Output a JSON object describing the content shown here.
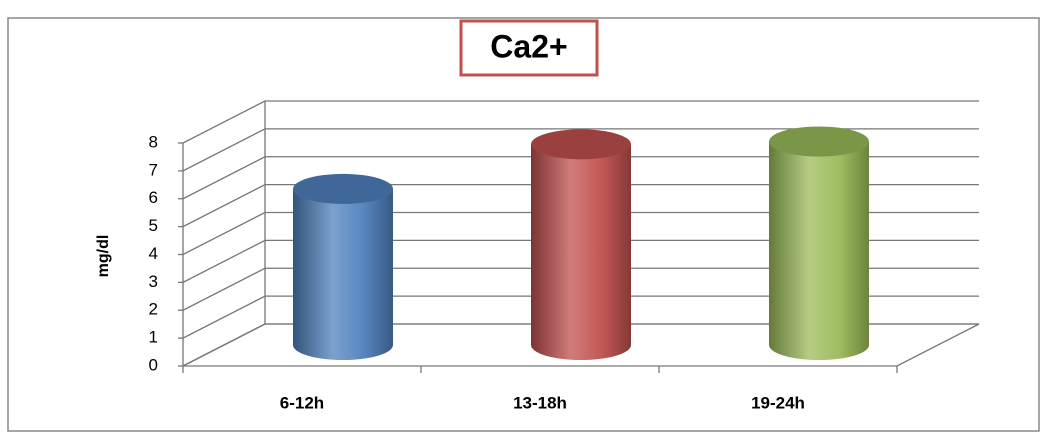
{
  "chart_data": {
    "type": "bar3d",
    "title": "Ca2+",
    "y_label": "mg/dl",
    "categories": [
      "6-12h",
      "13-18h",
      "19-24h"
    ],
    "values": [
      5.6,
      7.2,
      7.3
    ],
    "colors": [
      "#4f81bd",
      "#c0504d",
      "#9bbb59"
    ],
    "ylim": [
      0,
      8
    ],
    "yticks": [
      0,
      1,
      2,
      3,
      4,
      5,
      6,
      7,
      8
    ],
    "grid": true
  }
}
